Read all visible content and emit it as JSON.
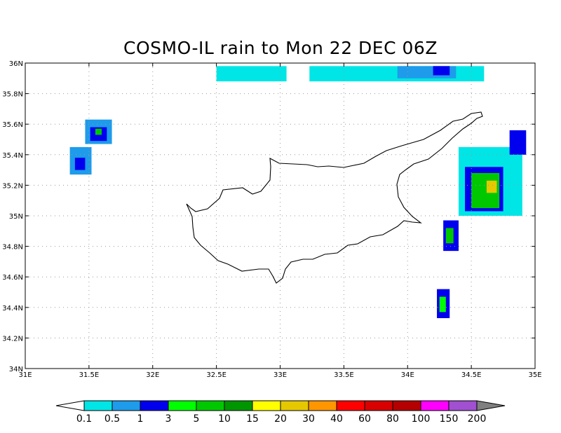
{
  "title": "COSMO-IL rain to Mon 22 DEC 06Z",
  "map": {
    "lon_range": [
      31,
      35
    ],
    "lat_range": [
      34,
      36
    ],
    "lon_ticks": [
      {
        "v": 31,
        "label": "31E"
      },
      {
        "v": 31.5,
        "label": "31.5E"
      },
      {
        "v": 32,
        "label": "32E"
      },
      {
        "v": 32.5,
        "label": "32.5E"
      },
      {
        "v": 33,
        "label": "33E"
      },
      {
        "v": 33.5,
        "label": "33.5E"
      },
      {
        "v": 34,
        "label": "34E"
      },
      {
        "v": 34.5,
        "label": "34.5E"
      },
      {
        "v": 35,
        "label": "35E"
      }
    ],
    "lat_ticks": [
      {
        "v": 34,
        "label": "34N"
      },
      {
        "v": 34.2,
        "label": "34.2N"
      },
      {
        "v": 34.4,
        "label": "34.4N"
      },
      {
        "v": 34.6,
        "label": "34.6N"
      },
      {
        "v": 34.8,
        "label": "34.8N"
      },
      {
        "v": 35,
        "label": "35N"
      },
      {
        "v": 35.2,
        "label": "35.2N"
      },
      {
        "v": 35.4,
        "label": "35.4N"
      },
      {
        "v": 35.6,
        "label": "35.6N"
      },
      {
        "v": 35.8,
        "label": "35.8N"
      },
      {
        "v": 36,
        "label": "36N"
      }
    ],
    "grid": "dotted",
    "coastline_name": "Cyprus"
  },
  "legend": {
    "labels": [
      "0.1",
      "0.5",
      "1",
      "3",
      "5",
      "10",
      "15",
      "20",
      "30",
      "40",
      "60",
      "80",
      "100",
      "150",
      "200"
    ],
    "colors": [
      "#00e5e5",
      "#1e9bea",
      "#0000ee",
      "#00ff00",
      "#00c800",
      "#009600",
      "#ffff00",
      "#e5c800",
      "#ff9600",
      "#ff0000",
      "#d80000",
      "#b40000",
      "#ff00ff",
      "#a050d0"
    ],
    "under_color": "#ffffff",
    "over_color": "#808080"
  },
  "chart_data": {
    "type": "heatmap",
    "title": "COSMO-IL rain to Mon 22 DEC 06Z",
    "x_range": [
      31,
      35
    ],
    "y_range": [
      34,
      36
    ],
    "levels": [
      0.1,
      0.5,
      1,
      3,
      5,
      10,
      15,
      20,
      30,
      40,
      60,
      80,
      100,
      150,
      200
    ],
    "rain_areas": [
      {
        "lon": [
          32.5,
          33.05
        ],
        "lat": [
          35.88,
          35.98
        ],
        "level": 0.1
      },
      {
        "lon": [
          33.23,
          34.6
        ],
        "lat": [
          35.88,
          35.98
        ],
        "level": 0.1
      },
      {
        "lon": [
          33.92,
          34.38
        ],
        "lat": [
          35.9,
          35.98
        ],
        "level": 0.5
      },
      {
        "lon": [
          34.2,
          34.33
        ],
        "lat": [
          35.92,
          35.98
        ],
        "level": 1
      },
      {
        "lon": [
          31.47,
          31.68
        ],
        "lat": [
          35.47,
          35.63
        ],
        "level": 0.5
      },
      {
        "lon": [
          31.51,
          31.64
        ],
        "lat": [
          35.49,
          35.58
        ],
        "level": 1
      },
      {
        "lon": [
          31.55,
          31.6
        ],
        "lat": [
          35.53,
          35.57
        ],
        "level": 5
      },
      {
        "lon": [
          31.35,
          31.52
        ],
        "lat": [
          35.27,
          35.45
        ],
        "level": 0.5
      },
      {
        "lon": [
          31.39,
          31.47
        ],
        "lat": [
          35.3,
          35.38
        ],
        "level": 1
      },
      {
        "lon": [
          34.28,
          34.4
        ],
        "lat": [
          34.77,
          34.97
        ],
        "level": 1
      },
      {
        "lon": [
          34.3,
          34.36
        ],
        "lat": [
          34.82,
          34.92
        ],
        "level": 5
      },
      {
        "lon": [
          34.23,
          34.33
        ],
        "lat": [
          34.33,
          34.52
        ],
        "level": 1
      },
      {
        "lon": [
          34.25,
          34.3
        ],
        "lat": [
          34.37,
          34.47
        ],
        "level": 3
      },
      {
        "lon": [
          34.4,
          34.9
        ],
        "lat": [
          35.0,
          35.45
        ],
        "level": 0.1
      },
      {
        "lon": [
          34.45,
          34.75
        ],
        "lat": [
          35.03,
          35.32
        ],
        "level": 1
      },
      {
        "lon": [
          34.5,
          34.72
        ],
        "lat": [
          35.05,
          35.28
        ],
        "level": 5
      },
      {
        "lon": [
          34.62,
          34.7
        ],
        "lat": [
          35.15,
          35.23
        ],
        "level": 20
      },
      {
        "lon": [
          34.8,
          34.93
        ],
        "lat": [
          35.4,
          35.56
        ],
        "level": 1
      }
    ]
  }
}
